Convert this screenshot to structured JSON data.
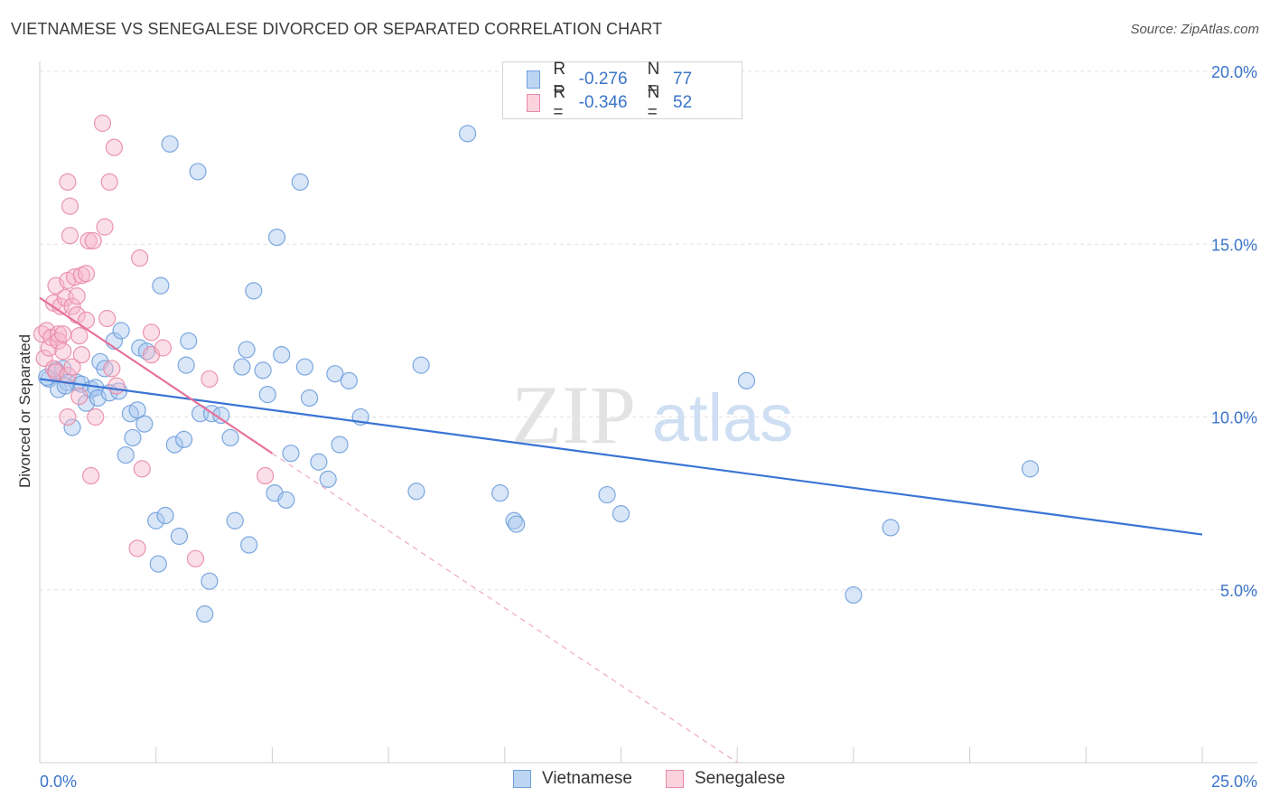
{
  "title": "VIETNAMESE VS SENEGALESE DIVORCED OR SEPARATED CORRELATION CHART",
  "source": "Source: ZipAtlas.com",
  "watermark": {
    "zip": "ZIP",
    "atlas": "atlas"
  },
  "legend": {
    "rows": [
      {
        "r_label": "R =",
        "r_value": "-0.276",
        "n_label": "N =",
        "n_value": "77",
        "color": "#a9c8f0",
        "border": "#6f9fdc"
      },
      {
        "r_label": "R =",
        "r_value": "-0.346",
        "n_label": "N =",
        "n_value": "52",
        "color": "#f7b9cb",
        "border": "#e88aa6"
      }
    ]
  },
  "bottom_legend": {
    "items": [
      "Vietnamese",
      "Senegalese"
    ]
  },
  "x_tick_labels": {
    "left": "0.0%",
    "right": "25.0%"
  },
  "chart_data": {
    "type": "scatter",
    "title": "VIETNAMESE VS SENEGALESE DIVORCED OR SEPARATED CORRELATION CHART",
    "xlabel": "",
    "ylabel": "Divorced or Separated",
    "xlim": [
      0,
      25
    ],
    "ylim": [
      0,
      20
    ],
    "y_ticks": [
      5,
      10,
      15,
      20
    ],
    "y_tick_labels": [
      "5.0%",
      "10.0%",
      "15.0%",
      "20.0%"
    ],
    "grid": "horizontal dashed",
    "legend_placement": "top-center",
    "colors": {
      "vietnamese": "#3a74d4",
      "senegalese": "#e8739a"
    },
    "series": [
      {
        "name": "Vietnamese",
        "marker_fill": "#a9c8f0",
        "marker_stroke": "#6f9fdc",
        "trend": {
          "x": [
            0,
            25
          ],
          "y": [
            11.1,
            6.6
          ],
          "style": "solid"
        },
        "points": [
          [
            0.2,
            11.1
          ],
          [
            0.35,
            11.35
          ],
          [
            0.4,
            10.8
          ],
          [
            0.5,
            11.4
          ],
          [
            0.6,
            11.0
          ],
          [
            0.7,
            9.7
          ],
          [
            0.8,
            11.0
          ],
          [
            0.9,
            10.95
          ],
          [
            1.0,
            10.4
          ],
          [
            1.1,
            10.8
          ],
          [
            1.2,
            10.85
          ],
          [
            1.25,
            10.55
          ],
          [
            1.3,
            11.6
          ],
          [
            1.4,
            11.4
          ],
          [
            1.5,
            10.7
          ],
          [
            1.6,
            12.2
          ],
          [
            1.7,
            10.75
          ],
          [
            1.75,
            12.5
          ],
          [
            1.85,
            8.9
          ],
          [
            1.95,
            10.1
          ],
          [
            2.0,
            9.4
          ],
          [
            2.1,
            10.2
          ],
          [
            2.15,
            12.0
          ],
          [
            2.25,
            9.8
          ],
          [
            2.3,
            11.9
          ],
          [
            2.5,
            7.0
          ],
          [
            2.55,
            5.75
          ],
          [
            2.6,
            13.8
          ],
          [
            2.7,
            7.15
          ],
          [
            2.8,
            17.9
          ],
          [
            2.9,
            9.2
          ],
          [
            3.0,
            6.55
          ],
          [
            3.1,
            9.35
          ],
          [
            3.15,
            11.5
          ],
          [
            3.2,
            12.2
          ],
          [
            3.4,
            17.1
          ],
          [
            3.45,
            10.1
          ],
          [
            3.55,
            4.3
          ],
          [
            3.65,
            5.25
          ],
          [
            3.7,
            10.1
          ],
          [
            3.9,
            10.05
          ],
          [
            4.1,
            9.4
          ],
          [
            4.2,
            7.0
          ],
          [
            4.35,
            11.45
          ],
          [
            4.45,
            11.95
          ],
          [
            4.5,
            6.3
          ],
          [
            4.6,
            13.65
          ],
          [
            4.8,
            11.35
          ],
          [
            4.9,
            10.65
          ],
          [
            5.05,
            7.8
          ],
          [
            5.1,
            15.2
          ],
          [
            5.2,
            11.8
          ],
          [
            5.3,
            7.6
          ],
          [
            5.4,
            8.95
          ],
          [
            5.6,
            16.8
          ],
          [
            5.7,
            11.45
          ],
          [
            5.8,
            10.55
          ],
          [
            6.0,
            8.7
          ],
          [
            6.2,
            8.2
          ],
          [
            6.35,
            11.25
          ],
          [
            6.45,
            9.2
          ],
          [
            6.65,
            11.05
          ],
          [
            6.9,
            10.0
          ],
          [
            8.1,
            7.85
          ],
          [
            8.2,
            11.5
          ],
          [
            9.2,
            18.2
          ],
          [
            9.9,
            7.8
          ],
          [
            10.2,
            7.0
          ],
          [
            10.25,
            6.9
          ],
          [
            12.2,
            7.75
          ],
          [
            12.5,
            7.2
          ],
          [
            15.2,
            11.05
          ],
          [
            17.5,
            4.85
          ],
          [
            18.3,
            6.8
          ],
          [
            21.3,
            8.5
          ],
          [
            0.15,
            11.15
          ],
          [
            0.55,
            10.9
          ]
        ]
      },
      {
        "name": "Senegalese",
        "marker_fill": "#f7b9cb",
        "marker_stroke": "#e88aa6",
        "trend": {
          "x": [
            0,
            5
          ],
          "y": [
            13.45,
            8.95
          ],
          "style": "solid",
          "extension": {
            "x": [
              5,
              15
            ],
            "y": [
              8.95,
              0
            ],
            "style": "dashed"
          }
        },
        "points": [
          [
            0.05,
            12.4
          ],
          [
            0.1,
            11.7
          ],
          [
            0.15,
            12.5
          ],
          [
            0.2,
            12.0
          ],
          [
            0.25,
            12.3
          ],
          [
            0.3,
            13.3
          ],
          [
            0.3,
            11.4
          ],
          [
            0.35,
            13.8
          ],
          [
            0.35,
            11.3
          ],
          [
            0.4,
            12.4
          ],
          [
            0.4,
            12.2
          ],
          [
            0.45,
            13.2
          ],
          [
            0.5,
            12.4
          ],
          [
            0.5,
            11.9
          ],
          [
            0.55,
            13.45
          ],
          [
            0.6,
            11.2
          ],
          [
            0.6,
            10.0
          ],
          [
            0.6,
            16.8
          ],
          [
            0.6,
            13.95
          ],
          [
            0.65,
            16.1
          ],
          [
            0.65,
            15.25
          ],
          [
            0.7,
            13.2
          ],
          [
            0.7,
            11.45
          ],
          [
            0.75,
            14.05
          ],
          [
            0.8,
            12.95
          ],
          [
            0.8,
            13.5
          ],
          [
            0.85,
            10.6
          ],
          [
            0.85,
            12.35
          ],
          [
            0.9,
            11.8
          ],
          [
            0.9,
            14.1
          ],
          [
            1.0,
            14.15
          ],
          [
            1.0,
            12.8
          ],
          [
            1.05,
            15.1
          ],
          [
            1.1,
            8.3
          ],
          [
            1.15,
            15.1
          ],
          [
            1.2,
            10.0
          ],
          [
            1.35,
            18.5
          ],
          [
            1.4,
            15.5
          ],
          [
            1.45,
            12.85
          ],
          [
            1.5,
            16.8
          ],
          [
            1.55,
            11.4
          ],
          [
            1.6,
            17.8
          ],
          [
            1.65,
            10.9
          ],
          [
            2.1,
            6.2
          ],
          [
            2.15,
            14.6
          ],
          [
            2.2,
            8.5
          ],
          [
            2.4,
            12.45
          ],
          [
            2.4,
            11.8
          ],
          [
            2.65,
            12.0
          ],
          [
            3.35,
            5.9
          ],
          [
            3.65,
            11.1
          ],
          [
            4.85,
            8.3
          ]
        ]
      }
    ]
  }
}
